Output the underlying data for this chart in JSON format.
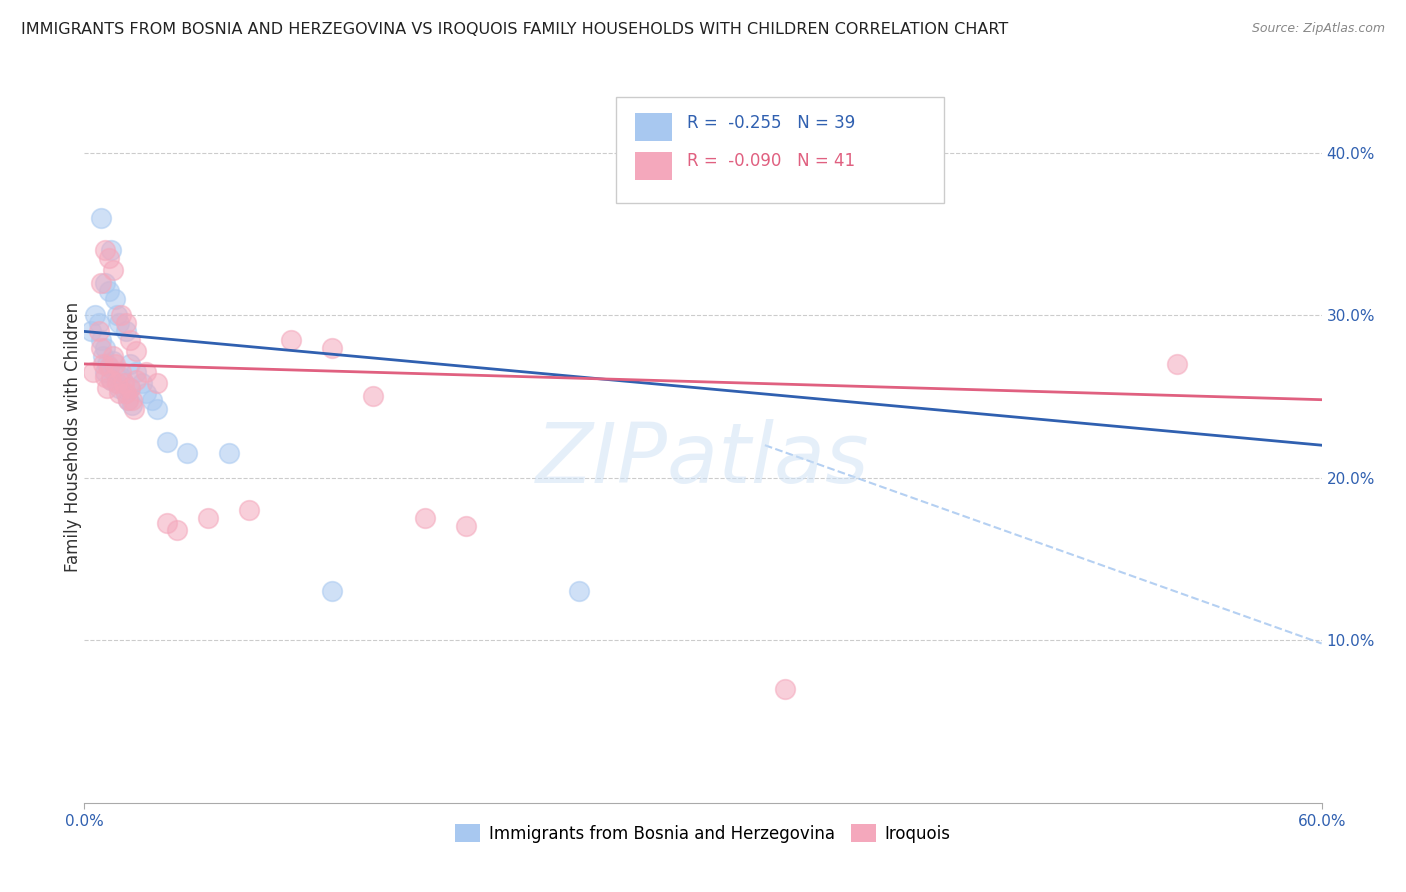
{
  "title": "IMMIGRANTS FROM BOSNIA AND HERZEGOVINA VS IROQUOIS FAMILY HOUSEHOLDS WITH CHILDREN CORRELATION CHART",
  "source": "Source: ZipAtlas.com",
  "ylabel": "Family Households with Children",
  "xlim": [
    0.0,
    0.6
  ],
  "ylim": [
    0.0,
    0.45
  ],
  "xtick_positions": [
    0.0,
    0.6
  ],
  "xtick_labels": [
    "0.0%",
    "60.0%"
  ],
  "ytick_positions": [
    0.1,
    0.2,
    0.3,
    0.4
  ],
  "ytick_labels": [
    "10.0%",
    "20.0%",
    "30.0%",
    "40.0%"
  ],
  "legend_blue_label": "Immigrants from Bosnia and Herzegovina",
  "legend_pink_label": "Iroquois",
  "R_blue": -0.255,
  "N_blue": 39,
  "R_pink": -0.09,
  "N_pink": 41,
  "blue_color": "#A8C8F0",
  "pink_color": "#F4A8BC",
  "line_blue_color": "#3060B0",
  "line_pink_color": "#E06080",
  "watermark": "ZIPatlas",
  "blue_scatter": [
    [
      0.003,
      0.29
    ],
    [
      0.005,
      0.3
    ],
    [
      0.007,
      0.295
    ],
    [
      0.008,
      0.285
    ],
    [
      0.009,
      0.275
    ],
    [
      0.01,
      0.28
    ],
    [
      0.01,
      0.265
    ],
    [
      0.011,
      0.27
    ],
    [
      0.012,
      0.268
    ],
    [
      0.013,
      0.26
    ],
    [
      0.014,
      0.272
    ],
    [
      0.015,
      0.265
    ],
    [
      0.016,
      0.258
    ],
    [
      0.017,
      0.255
    ],
    [
      0.018,
      0.262
    ],
    [
      0.019,
      0.258
    ],
    [
      0.02,
      0.252
    ],
    [
      0.021,
      0.248
    ],
    [
      0.022,
      0.255
    ],
    [
      0.023,
      0.245
    ],
    [
      0.01,
      0.32
    ],
    [
      0.012,
      0.315
    ],
    [
      0.013,
      0.34
    ],
    [
      0.008,
      0.36
    ],
    [
      0.015,
      0.31
    ],
    [
      0.016,
      0.3
    ],
    [
      0.017,
      0.295
    ],
    [
      0.02,
      0.29
    ],
    [
      0.022,
      0.27
    ],
    [
      0.025,
      0.265
    ],
    [
      0.028,
      0.258
    ],
    [
      0.03,
      0.252
    ],
    [
      0.033,
      0.248
    ],
    [
      0.035,
      0.242
    ],
    [
      0.04,
      0.222
    ],
    [
      0.05,
      0.215
    ],
    [
      0.07,
      0.215
    ],
    [
      0.12,
      0.13
    ],
    [
      0.24,
      0.13
    ]
  ],
  "pink_scatter": [
    [
      0.004,
      0.265
    ],
    [
      0.007,
      0.29
    ],
    [
      0.008,
      0.28
    ],
    [
      0.009,
      0.27
    ],
    [
      0.01,
      0.262
    ],
    [
      0.011,
      0.255
    ],
    [
      0.012,
      0.268
    ],
    [
      0.013,
      0.26
    ],
    [
      0.014,
      0.275
    ],
    [
      0.015,
      0.27
    ],
    [
      0.016,
      0.258
    ],
    [
      0.017,
      0.252
    ],
    [
      0.018,
      0.265
    ],
    [
      0.019,
      0.258
    ],
    [
      0.02,
      0.252
    ],
    [
      0.021,
      0.248
    ],
    [
      0.022,
      0.255
    ],
    [
      0.023,
      0.248
    ],
    [
      0.024,
      0.242
    ],
    [
      0.025,
      0.26
    ],
    [
      0.008,
      0.32
    ],
    [
      0.01,
      0.34
    ],
    [
      0.012,
      0.335
    ],
    [
      0.014,
      0.328
    ],
    [
      0.018,
      0.3
    ],
    [
      0.02,
      0.295
    ],
    [
      0.022,
      0.285
    ],
    [
      0.025,
      0.278
    ],
    [
      0.03,
      0.265
    ],
    [
      0.035,
      0.258
    ],
    [
      0.04,
      0.172
    ],
    [
      0.045,
      0.168
    ],
    [
      0.06,
      0.175
    ],
    [
      0.08,
      0.18
    ],
    [
      0.1,
      0.285
    ],
    [
      0.12,
      0.28
    ],
    [
      0.14,
      0.25
    ],
    [
      0.165,
      0.175
    ],
    [
      0.185,
      0.17
    ],
    [
      0.34,
      0.07
    ],
    [
      0.53,
      0.27
    ]
  ],
  "blue_trend": [
    0.0,
    0.6,
    0.29,
    0.22
  ],
  "pink_trend": [
    0.0,
    0.6,
    0.27,
    0.248
  ],
  "dash_trend": [
    0.33,
    0.6,
    0.22,
    0.098
  ]
}
